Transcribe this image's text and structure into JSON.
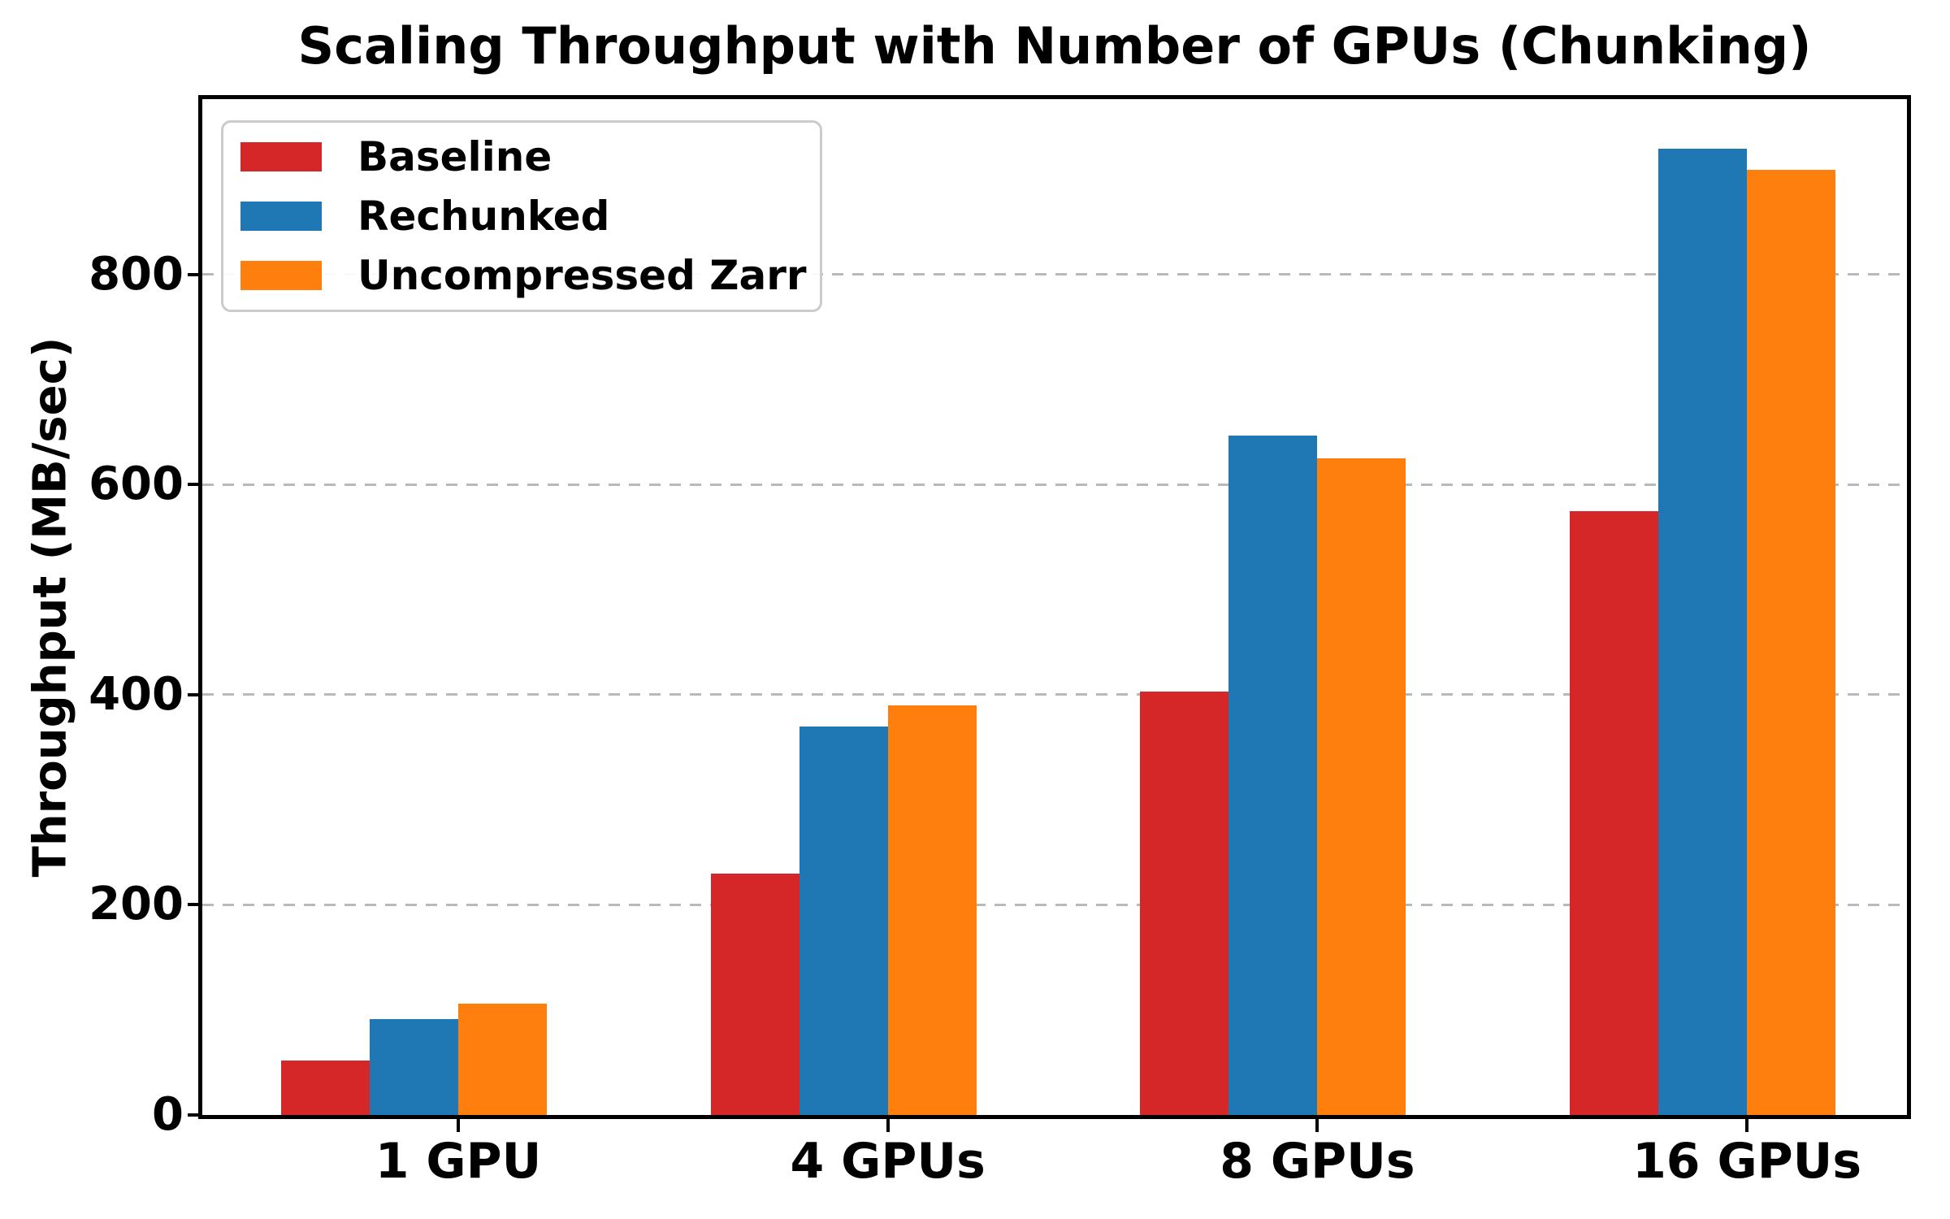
{
  "title": "Scaling Throughput with Number of GPUs (Chunking)",
  "chart_data": {
    "type": "bar",
    "title": "Scaling Throughput with Number of GPUs (Chunking)",
    "xlabel": "",
    "ylabel": "Throughput (MB/sec)",
    "categories": [
      "1 GPU",
      "4 GPUs",
      "8 GPUs",
      "16 GPUs"
    ],
    "series": [
      {
        "name": "Baseline",
        "color": "#d62728",
        "values": [
          52,
          230,
          403,
          575
        ]
      },
      {
        "name": "Rechunked",
        "color": "#1f77b4",
        "values": [
          91,
          370,
          647,
          920
        ]
      },
      {
        "name": "Uncompressed Zarr",
        "color": "#ff7f0e",
        "values": [
          106,
          390,
          625,
          900
        ]
      }
    ],
    "yticks": [
      0,
      200,
      400,
      600,
      800
    ],
    "ylim": [
      0,
      967
    ],
    "grid": "horizontal-dashed",
    "gridline_color": "#b9b9b9",
    "legend_position": "upper-left",
    "background_color": "#ffffff"
  }
}
